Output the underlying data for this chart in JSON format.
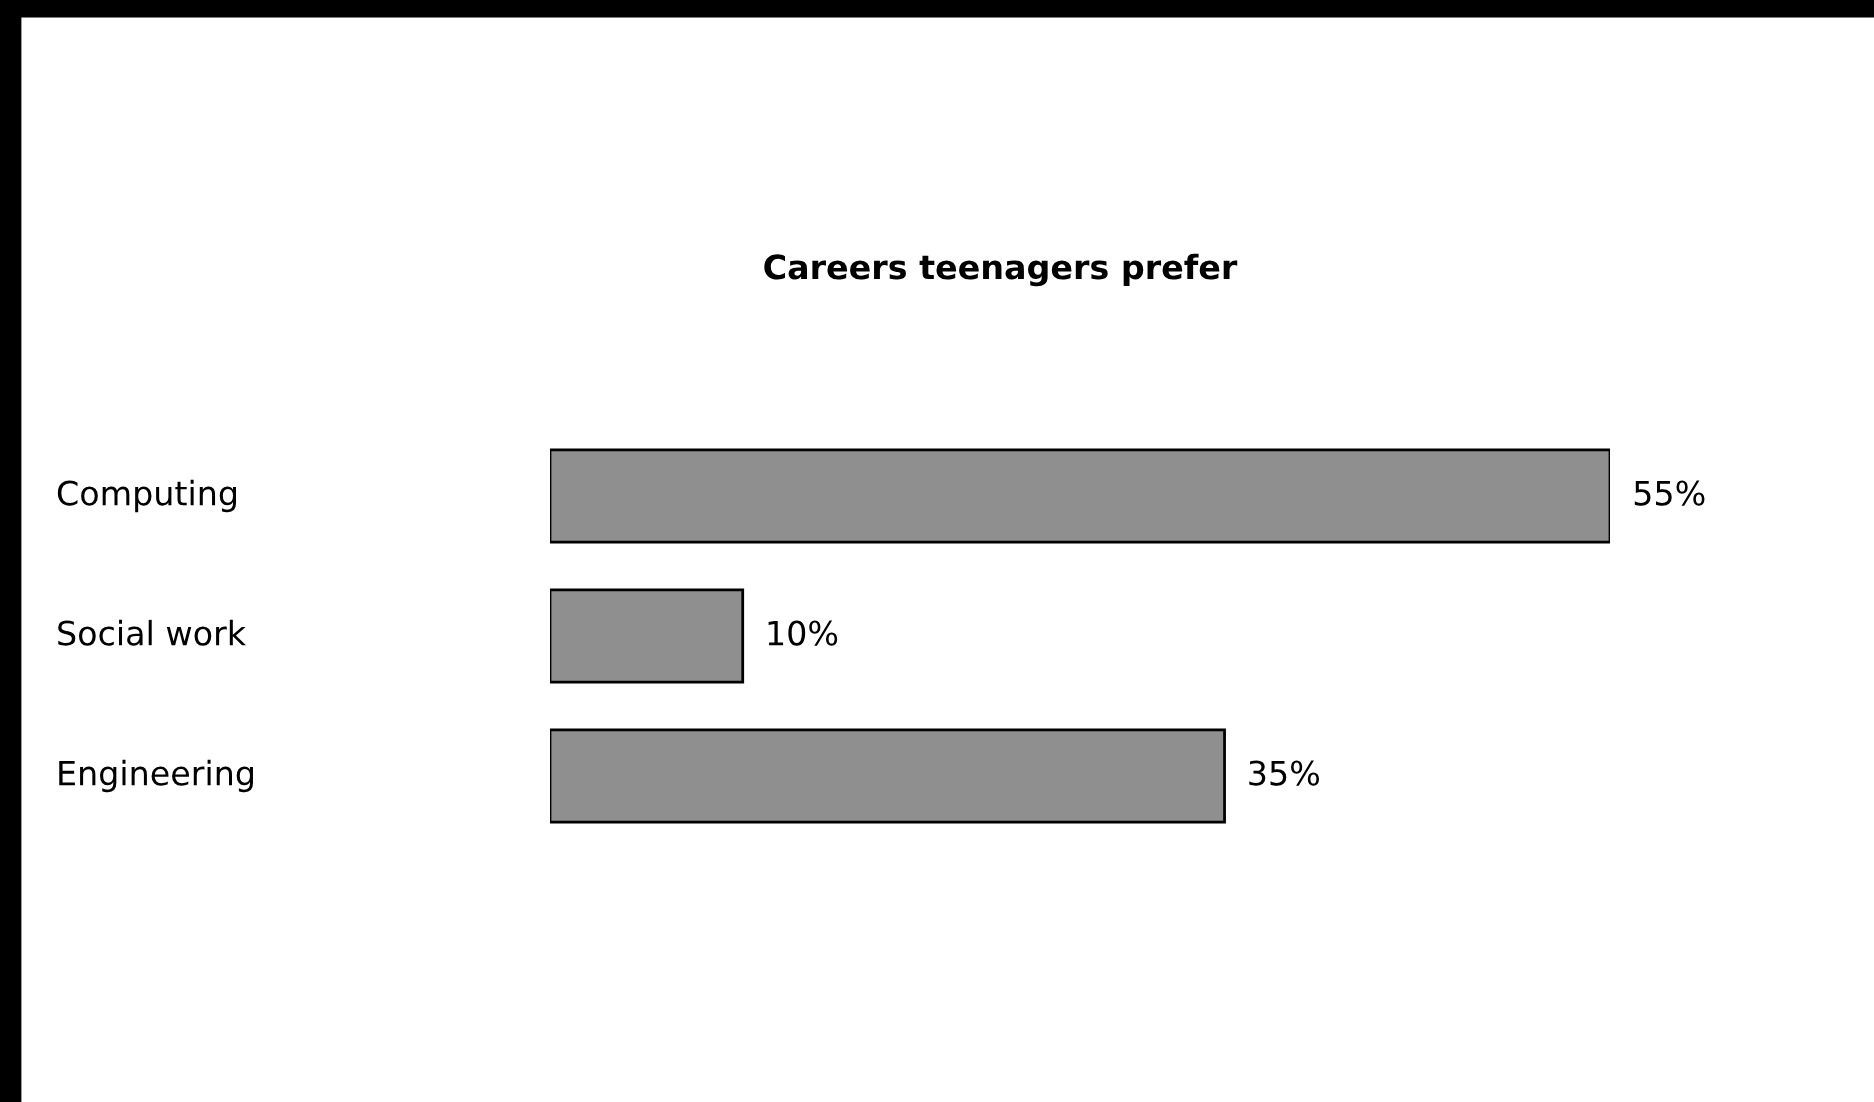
{
  "chart_data": {
    "type": "bar",
    "orientation": "horizontal",
    "title": "Careers teenagers prefer",
    "categories": [
      "Computing",
      "Social work",
      "Engineering"
    ],
    "values": [
      55,
      10,
      35
    ],
    "value_labels": [
      "55%",
      "10%",
      "35%"
    ],
    "color": "#8f8f8f"
  }
}
